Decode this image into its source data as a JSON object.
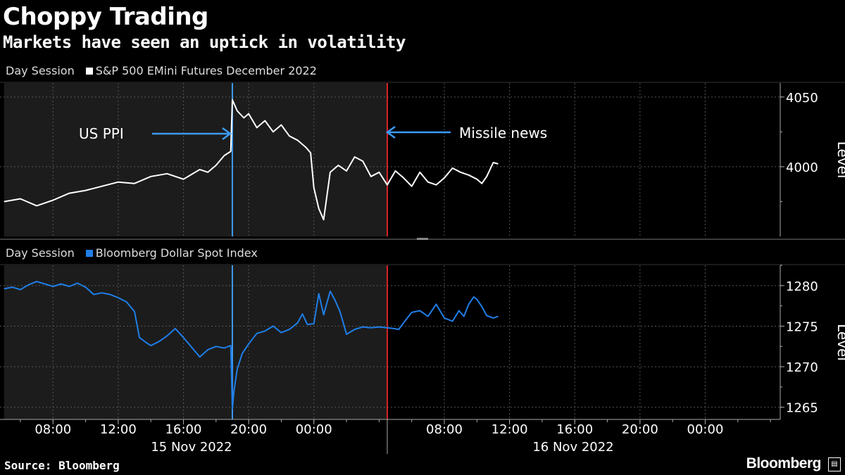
{
  "header": {
    "title": "Choppy Trading",
    "subtitle": "Markets have seen an uptick in volatility"
  },
  "footer": {
    "source": "Source: Bloomberg",
    "brand": "Bloomberg"
  },
  "colors": {
    "background": "#000000",
    "shaded": "#1c1c1c",
    "spx_line": "#ffffff",
    "dxy_line": "#1f7ee8",
    "ppi_marker": "#3d9bf5",
    "missile_marker": "#d9232a"
  },
  "chart_data": [
    {
      "type": "line",
      "session_label": "Day Session",
      "legend": "S&P 500 EMini Futures December 2022",
      "ylabel": "Level",
      "yticks": [
        4000,
        4050
      ],
      "ylim": [
        3950,
        4060
      ],
      "series": [
        {
          "name": "S&P 500 EMini Futures December 2022",
          "x_hours": [
            5.0,
            6.0,
            7.0,
            8.0,
            9.0,
            10.0,
            11.0,
            12.0,
            13.0,
            14.0,
            15.0,
            16.0,
            17.0,
            17.5,
            18.0,
            18.5,
            18.9,
            19.0,
            19.3,
            19.7,
            20.0,
            20.5,
            21.0,
            21.5,
            22.0,
            22.5,
            23.0,
            23.5,
            23.8,
            24.0,
            24.3,
            24.6,
            25.0,
            25.5,
            26.0,
            26.5,
            27.0,
            27.5,
            28.0,
            28.5,
            29.0,
            29.5,
            30.0,
            30.5,
            31.0,
            31.5,
            32.0,
            32.5,
            33.0,
            33.5,
            34.0,
            34.3,
            34.6,
            35.0,
            35.3
          ],
          "values": [
            3975,
            3977,
            3972,
            3976,
            3981,
            3983,
            3986,
            3989,
            3988,
            3993,
            3995,
            3991,
            3998,
            3996,
            4001,
            4008,
            4011,
            4048,
            4040,
            4035,
            4038,
            4028,
            4033,
            4025,
            4030,
            4022,
            4019,
            4014,
            4010,
            3985,
            3970,
            3962,
            3996,
            4001,
            3997,
            4007,
            4004,
            3993,
            3996,
            3987,
            3997,
            3992,
            3986,
            3996,
            3989,
            3987,
            3992,
            3999,
            3996,
            3994,
            3991,
            3988,
            3993,
            4003,
            4002
          ]
        }
      ],
      "annotations": [
        {
          "text": "US PPI",
          "x_hours": 19.0
        },
        {
          "text": "Missile news",
          "x_hours": 28.5
        }
      ]
    },
    {
      "type": "line",
      "session_label": "Day Session",
      "legend": "Bloomberg Dollar Spot Index",
      "ylabel": "Level",
      "yticks": [
        1265,
        1270,
        1275,
        1280
      ],
      "ylim": [
        1263.5,
        1282.5
      ],
      "series": [
        {
          "name": "Bloomberg Dollar Spot Index",
          "x_hours": [
            5.0,
            5.5,
            6.0,
            6.5,
            7.0,
            7.5,
            8.0,
            8.5,
            9.0,
            9.5,
            10.0,
            10.5,
            11.0,
            11.5,
            12.0,
            12.5,
            13.0,
            13.3,
            13.7,
            14.0,
            14.5,
            15.0,
            15.5,
            16.0,
            16.5,
            17.0,
            17.5,
            18.0,
            18.5,
            18.9,
            19.0,
            19.1,
            19.3,
            19.6,
            20.0,
            20.5,
            21.0,
            21.5,
            22.0,
            22.5,
            23.0,
            23.3,
            23.6,
            24.0,
            24.3,
            24.6,
            25.0,
            25.3,
            25.6,
            26.0,
            26.5,
            27.0,
            27.5,
            28.0,
            28.5,
            28.9,
            29.2,
            29.5,
            30.0,
            30.5,
            31.0,
            31.5,
            32.0,
            32.5,
            32.9,
            33.2,
            33.5,
            33.8,
            34.0,
            34.3,
            34.6,
            35.0,
            35.3
          ],
          "values": [
            1279.6,
            1279.8,
            1279.5,
            1280.1,
            1280.5,
            1280.2,
            1279.9,
            1280.2,
            1279.9,
            1280.3,
            1279.8,
            1278.9,
            1279.1,
            1278.9,
            1278.5,
            1278.0,
            1276.8,
            1273.6,
            1273.0,
            1272.6,
            1273.1,
            1273.8,
            1274.7,
            1273.6,
            1272.4,
            1271.2,
            1272.1,
            1272.5,
            1272.3,
            1272.6,
            1264.8,
            1267.0,
            1269.7,
            1271.6,
            1272.8,
            1274.1,
            1274.4,
            1275.0,
            1274.2,
            1274.6,
            1275.4,
            1276.5,
            1275.2,
            1275.3,
            1279.0,
            1276.4,
            1279.3,
            1278.2,
            1276.8,
            1274.0,
            1274.6,
            1274.9,
            1274.8,
            1274.9,
            1274.8,
            1274.7,
            1274.6,
            1275.4,
            1276.7,
            1276.9,
            1276.2,
            1277.7,
            1276.0,
            1275.6,
            1276.9,
            1276.2,
            1277.7,
            1278.6,
            1278.3,
            1277.4,
            1276.3,
            1276.0,
            1276.2
          ]
        }
      ]
    }
  ],
  "x_axis": {
    "tick_labels": [
      "08:00",
      "12:00",
      "16:00",
      "20:00",
      "00:00",
      "08:00",
      "12:00",
      "16:00",
      "20:00",
      "00:00"
    ],
    "tick_hours": [
      8,
      12,
      16,
      20,
      24,
      32,
      36,
      40,
      44,
      48
    ],
    "day_labels": [
      "15 Nov 2022",
      "16 Nov 2022"
    ]
  },
  "shaded_session": {
    "start_hours": 5.0,
    "end_hours": 28.5
  }
}
